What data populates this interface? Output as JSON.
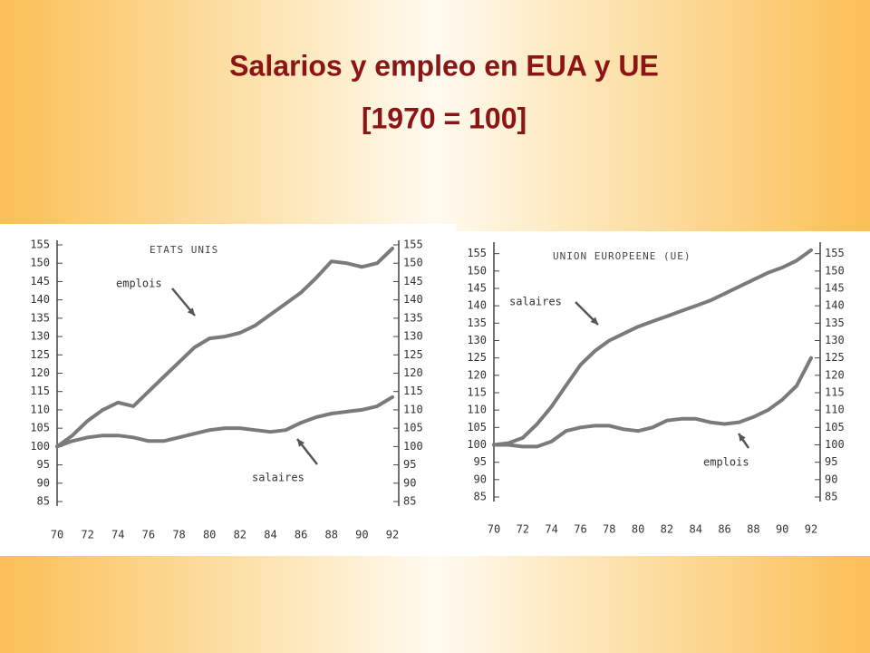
{
  "slide": {
    "title": "Salarios y empleo en EUA y UE",
    "subtitle": "[1970 = 100]"
  },
  "chart_data": [
    {
      "type": "line",
      "title": "ETATS UNIS",
      "x": [
        70,
        71,
        72,
        73,
        74,
        75,
        76,
        77,
        78,
        79,
        80,
        81,
        82,
        83,
        84,
        85,
        86,
        87,
        88,
        89,
        90,
        91,
        92
      ],
      "series": [
        {
          "name": "emplois",
          "color": "#7a7a7a",
          "values": [
            100,
            103,
            107,
            110,
            112,
            111,
            115,
            119,
            123,
            127,
            129.5,
            130,
            131,
            133,
            136,
            139,
            142,
            146,
            150.5,
            150,
            149,
            150,
            154
          ]
        },
        {
          "name": "salaires",
          "color": "#7a7a7a",
          "values": [
            100,
            101.5,
            102.5,
            103,
            103,
            102.5,
            101.5,
            101.5,
            102.5,
            103.5,
            104.5,
            105,
            105,
            104.5,
            104,
            104.5,
            106.5,
            108,
            109,
            109.5,
            110,
            111,
            113.5
          ]
        }
      ],
      "xlim": [
        70,
        92
      ],
      "xticks": [
        70,
        72,
        74,
        76,
        78,
        80,
        82,
        84,
        86,
        88,
        90,
        92
      ],
      "ylim": [
        85,
        155
      ],
      "yticks": [
        85,
        90,
        95,
        100,
        105,
        110,
        115,
        120,
        125,
        130,
        135,
        140,
        145,
        150,
        155
      ],
      "y2lim": [
        85,
        155
      ],
      "y2ticks": [
        85,
        90,
        95,
        100,
        105,
        110,
        115,
        120,
        125,
        130,
        135,
        140,
        145,
        150,
        155
      ]
    },
    {
      "type": "line",
      "title": "UNION EUROPEENE (UE)",
      "x": [
        70,
        71,
        72,
        73,
        74,
        75,
        76,
        77,
        78,
        79,
        80,
        81,
        82,
        83,
        84,
        85,
        86,
        87,
        88,
        89,
        90,
        91,
        92
      ],
      "series": [
        {
          "name": "salaires",
          "color": "#7a7a7a",
          "values": [
            100,
            100.5,
            102,
            106,
            111,
            117,
            123,
            127,
            130,
            132,
            134,
            135.5,
            137,
            138.5,
            140,
            141.5,
            143.5,
            145.5,
            147.5,
            149.5,
            151,
            153,
            156
          ]
        },
        {
          "name": "emplois",
          "color": "#7a7a7a",
          "values": [
            100,
            100,
            99.5,
            99.5,
            101,
            104,
            105,
            105.5,
            105.5,
            104.5,
            104,
            105,
            107,
            107.5,
            107.5,
            106.5,
            106,
            106.5,
            108,
            110,
            113,
            117,
            125
          ]
        }
      ],
      "xlim": [
        70,
        92
      ],
      "xticks": [
        70,
        72,
        74,
        76,
        78,
        80,
        82,
        84,
        86,
        88,
        90,
        92
      ],
      "ylim": [
        85,
        157
      ],
      "yticks": [
        85,
        90,
        95,
        100,
        105,
        110,
        115,
        120,
        125,
        130,
        135,
        140,
        145,
        150,
        155
      ],
      "y2lim": [
        85,
        157
      ],
      "y2ticks": [
        85,
        90,
        95,
        100,
        105,
        110,
        115,
        120,
        125,
        130,
        135,
        140,
        145,
        150,
        155
      ]
    }
  ]
}
